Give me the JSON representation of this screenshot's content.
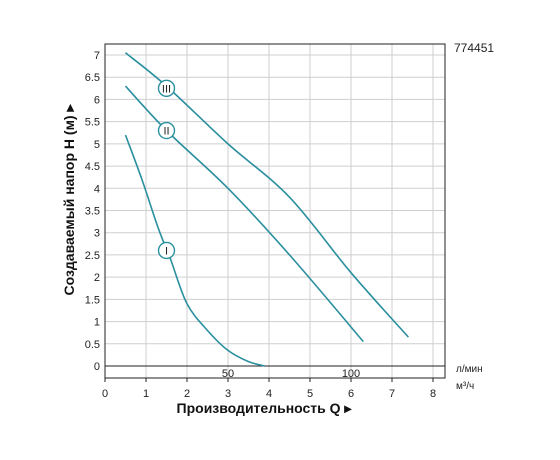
{
  "model_code": "774451",
  "chart_data": {
    "type": "line",
    "xlabel": "Производительность Q ▸",
    "ylabel": "Создаваемый напор H (м) ▸",
    "x_unit": "м³/ч",
    "x_secondary_unit": "л/мин",
    "xlim": [
      0,
      8
    ],
    "ylim": [
      0,
      7
    ],
    "x_ticks": [
      0,
      1,
      2,
      3,
      4,
      5,
      6,
      7,
      8
    ],
    "y_ticks": [
      0,
      0.5,
      1,
      1.5,
      2,
      2.5,
      3,
      3.5,
      4,
      4.5,
      5,
      5.5,
      6,
      6.5,
      7
    ],
    "x_secondary_ticks": [
      {
        "value": 50,
        "label": "50"
      },
      {
        "value": 100,
        "label": "100"
      }
    ],
    "x_secondary_per_primary": 16.6667,
    "grid": true,
    "curve_color": "#2a8f9e",
    "series": [
      {
        "name": "I",
        "label_at": [
          1.5,
          2.6
        ],
        "x": [
          0.5,
          0.9,
          1.3,
          1.6,
          2.0,
          2.5,
          3.0,
          3.5,
          3.9
        ],
        "y": [
          5.2,
          4.2,
          3.1,
          2.4,
          1.4,
          0.8,
          0.35,
          0.1,
          0.0
        ]
      },
      {
        "name": "II",
        "label_at": [
          1.5,
          5.3
        ],
        "x": [
          0.5,
          1.5,
          3.0,
          4.5,
          6.3
        ],
        "y": [
          6.3,
          5.3,
          4.0,
          2.5,
          0.55
        ]
      },
      {
        "name": "III",
        "label_at": [
          1.5,
          6.25
        ],
        "x": [
          0.5,
          1.5,
          3.0,
          4.5,
          6.0,
          7.4
        ],
        "y": [
          7.05,
          6.3,
          5.0,
          3.8,
          2.1,
          0.65
        ]
      }
    ]
  }
}
